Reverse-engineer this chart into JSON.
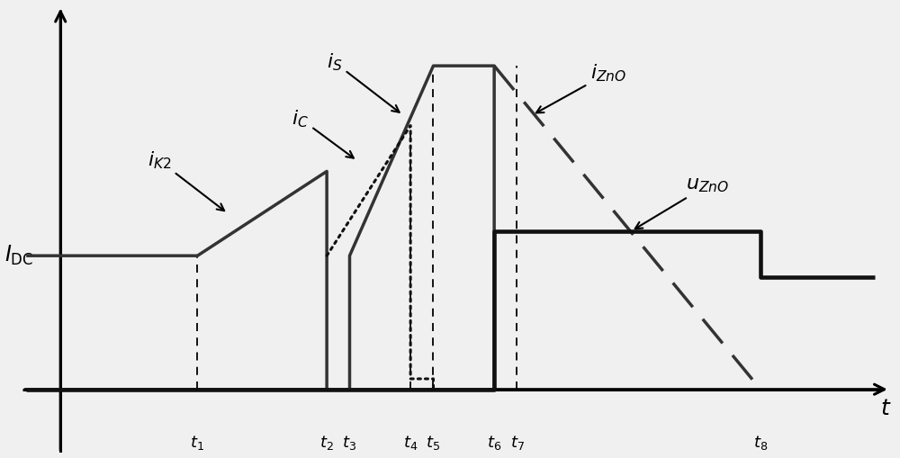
{
  "background_color": "#f0f0f0",
  "t_values": [
    1.8,
    3.5,
    3.8,
    4.6,
    4.9,
    5.7,
    6.0,
    9.2
  ],
  "IDC_level": 3.8,
  "iK2_peak": 6.2,
  "iS_peak": 9.2,
  "iC_peak": 7.5,
  "uZnO_high": 4.5,
  "uZnO_low": 3.2,
  "xlim": [
    -0.5,
    11.0
  ],
  "ylim": [
    -1.8,
    11.0
  ],
  "line_color": "#333333",
  "dashed_color": "#555555",
  "axis_color": "#111111"
}
